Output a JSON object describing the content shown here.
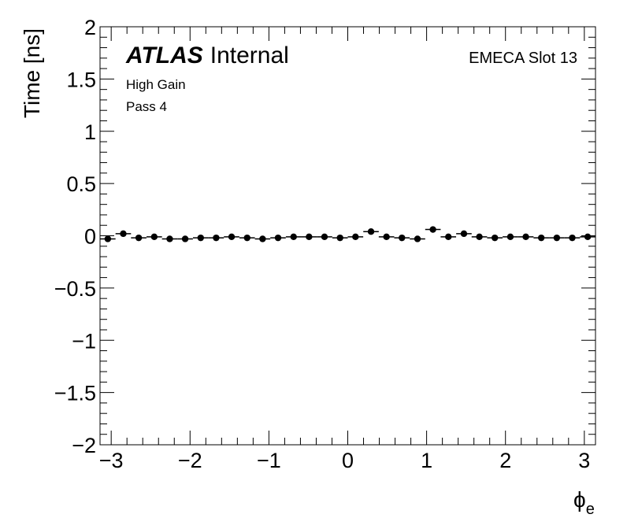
{
  "chart_data": {
    "type": "scatter",
    "title": "",
    "xlabel": "ϕ",
    "xlabel_sub": "e",
    "ylabel": "Time [ns]",
    "xlim": [
      -3.1416,
      3.1416
    ],
    "ylim": [
      -2,
      2
    ],
    "x_ticks": [
      -3,
      -2,
      -1,
      0,
      1,
      2,
      3
    ],
    "x_tick_labels": [
      "−3",
      "−2",
      "−1",
      "0",
      "1",
      "2",
      "3"
    ],
    "y_ticks": [
      -2,
      -1.5,
      -1,
      -0.5,
      0,
      0.5,
      1,
      1.5,
      2
    ],
    "y_tick_labels": [
      "−2",
      "−1.5",
      "−1",
      "−0.5",
      "0",
      "0.5",
      "1",
      "1.5",
      "2"
    ],
    "grid": false,
    "legend": "none",
    "annotations": {
      "experiment": "ATLAS",
      "status": "Internal",
      "gain": "High Gain",
      "pass": "Pass 4",
      "slot": "EMECA Slot 13"
    },
    "series": [
      {
        "marker": "circle",
        "color": "#000000",
        "x_half_width": 0.098,
        "x": [
          -3.043,
          -2.847,
          -2.651,
          -2.454,
          -2.258,
          -2.062,
          -1.865,
          -1.669,
          -1.473,
          -1.276,
          -1.08,
          -0.884,
          -0.687,
          -0.491,
          -0.295,
          -0.098,
          0.098,
          0.295,
          0.491,
          0.687,
          0.884,
          1.08,
          1.276,
          1.473,
          1.669,
          1.865,
          2.062,
          2.258,
          2.454,
          2.651,
          2.847,
          3.043
        ],
        "y": [
          -0.03,
          0.02,
          -0.02,
          -0.01,
          -0.03,
          -0.03,
          -0.02,
          -0.02,
          -0.01,
          -0.02,
          -0.03,
          -0.02,
          -0.01,
          -0.01,
          -0.01,
          -0.02,
          -0.01,
          0.04,
          -0.01,
          -0.02,
          -0.03,
          0.06,
          -0.01,
          0.02,
          -0.01,
          -0.02,
          -0.01,
          -0.01,
          -0.02,
          -0.02,
          -0.02,
          -0.01
        ]
      }
    ]
  }
}
